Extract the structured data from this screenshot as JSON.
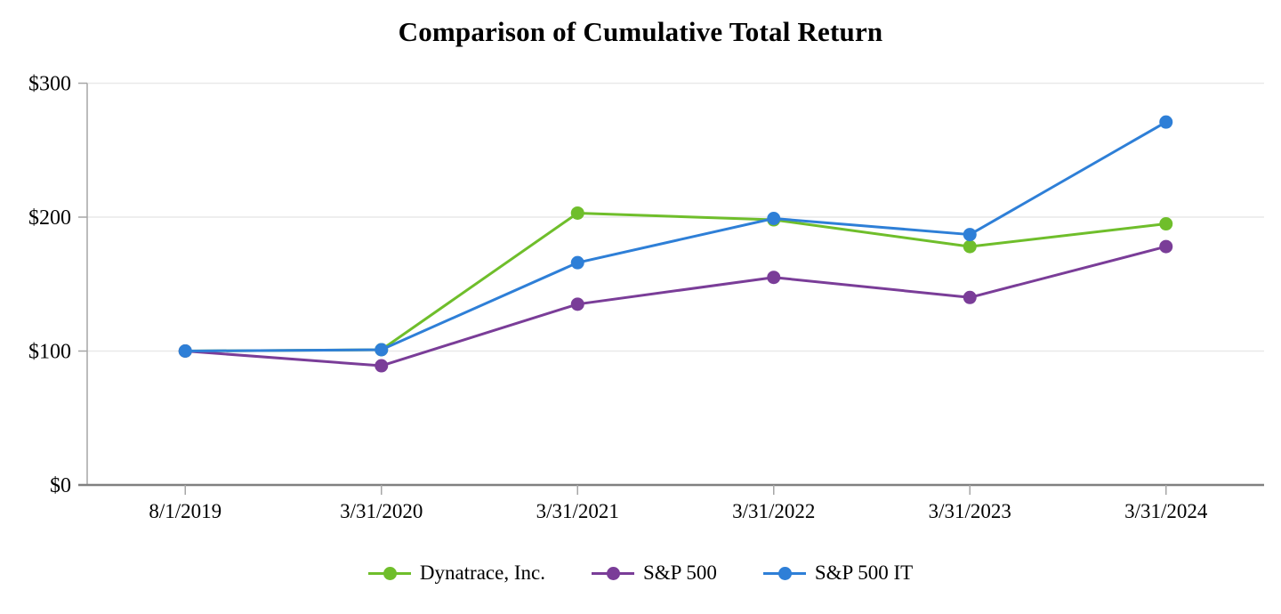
{
  "chart_data": {
    "type": "line",
    "title": "Comparison of Cumulative Total Return",
    "categories": [
      "8/1/2019",
      "3/31/2020",
      "3/31/2021",
      "3/31/2022",
      "3/31/2023",
      "3/31/2024"
    ],
    "series": [
      {
        "name": "Dynatrace, Inc.",
        "color": "#6FBE2B",
        "values": [
          100,
          101,
          203,
          198,
          178,
          195
        ]
      },
      {
        "name": "S&P 500",
        "color": "#7A3D98",
        "values": [
          100,
          89,
          135,
          155,
          140,
          178
        ]
      },
      {
        "name": "S&P 500 IT",
        "color": "#2E7FD7",
        "values": [
          100,
          101,
          166,
          199,
          187,
          271
        ]
      }
    ],
    "ylim": [
      0,
      300
    ],
    "yticks": [
      {
        "value": 0,
        "label": "$0"
      },
      {
        "value": 100,
        "label": "$100"
      },
      {
        "value": 200,
        "label": "$200"
      },
      {
        "value": 300,
        "label": "$300"
      }
    ],
    "grid": "horizontal-only",
    "legend_position": "bottom-center",
    "marker": "circle",
    "colors": {
      "gridline": "#E9E9E9",
      "y_axis": "#A6A6A6",
      "x_axis": "#808080",
      "text": "#000000",
      "background": "#FFFFFF"
    }
  }
}
